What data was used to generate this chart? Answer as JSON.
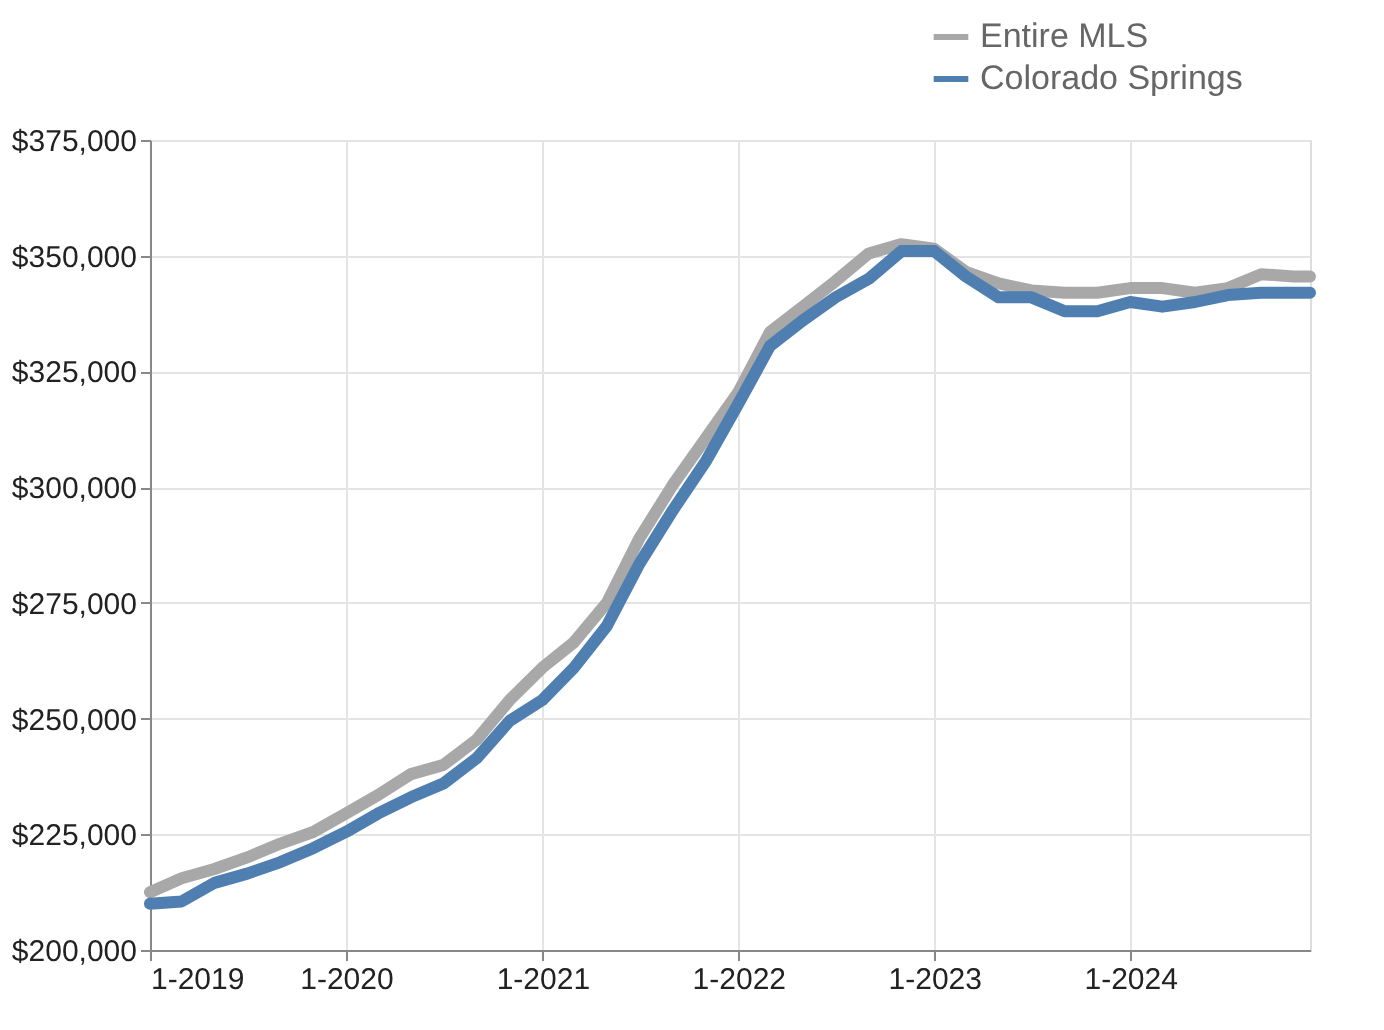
{
  "chart_data": {
    "type": "line",
    "x": [
      "2019-01",
      "2019-03",
      "2019-05",
      "2019-07",
      "2019-09",
      "2019-11",
      "2020-01",
      "2020-03",
      "2020-05",
      "2020-07",
      "2020-09",
      "2020-11",
      "2021-01",
      "2021-03",
      "2021-05",
      "2021-07",
      "2021-09",
      "2021-11",
      "2022-01",
      "2022-03",
      "2022-05",
      "2022-07",
      "2022-09",
      "2022-11",
      "2023-01",
      "2023-03",
      "2023-05",
      "2023-07",
      "2023-09",
      "2023-11",
      "2024-01",
      "2024-03",
      "2024-05",
      "2024-07",
      "2024-09",
      "2024-11",
      "2024-12"
    ],
    "series": [
      {
        "name": "Entire MLS",
        "color": "#a8a8a8",
        "values": [
          212500,
          215500,
          217500,
          220000,
          223000,
          225500,
          229500,
          233500,
          238000,
          240000,
          245500,
          254000,
          261000,
          266500,
          275000,
          289000,
          300500,
          310500,
          320500,
          333500,
          339000,
          344500,
          350500,
          352500,
          351500,
          346500,
          344000,
          342500,
          342000,
          342000,
          343000,
          343000,
          342000,
          343000,
          346000,
          345500,
          345500
        ]
      },
      {
        "name": "Colorado Springs",
        "color": "#4f7fb0",
        "values": [
          210000,
          210500,
          214500,
          216500,
          219000,
          222000,
          225500,
          229500,
          233000,
          236000,
          241500,
          249500,
          254000,
          261000,
          270000,
          283500,
          295000,
          305500,
          318000,
          330500,
          336000,
          341000,
          345000,
          351000,
          351000,
          345500,
          341000,
          341000,
          338000,
          338000,
          340000,
          339000,
          340000,
          341500,
          342000,
          342000,
          342000
        ]
      }
    ],
    "xlim": [
      "2019-01",
      "2024-12"
    ],
    "xticks": [
      {
        "value": "2019-01",
        "label": "1-2019"
      },
      {
        "value": "2020-01",
        "label": "1-2020"
      },
      {
        "value": "2021-01",
        "label": "1-2021"
      },
      {
        "value": "2022-01",
        "label": "1-2022"
      },
      {
        "value": "2023-01",
        "label": "1-2023"
      },
      {
        "value": "2024-01",
        "label": "1-2024"
      }
    ],
    "ylim": [
      200000,
      375000
    ],
    "yticks": [
      {
        "value": 200000,
        "label": "$200,000"
      },
      {
        "value": 225000,
        "label": "$225,000"
      },
      {
        "value": 250000,
        "label": "$250,000"
      },
      {
        "value": 275000,
        "label": "$275,000"
      },
      {
        "value": 300000,
        "label": "$300,000"
      },
      {
        "value": 325000,
        "label": "$325,000"
      },
      {
        "value": 350000,
        "label": "$350,000"
      },
      {
        "value": 375000,
        "label": "$375,000"
      }
    ],
    "grid": true,
    "legend": "top right",
    "marker": "none",
    "line_style": "solid"
  }
}
